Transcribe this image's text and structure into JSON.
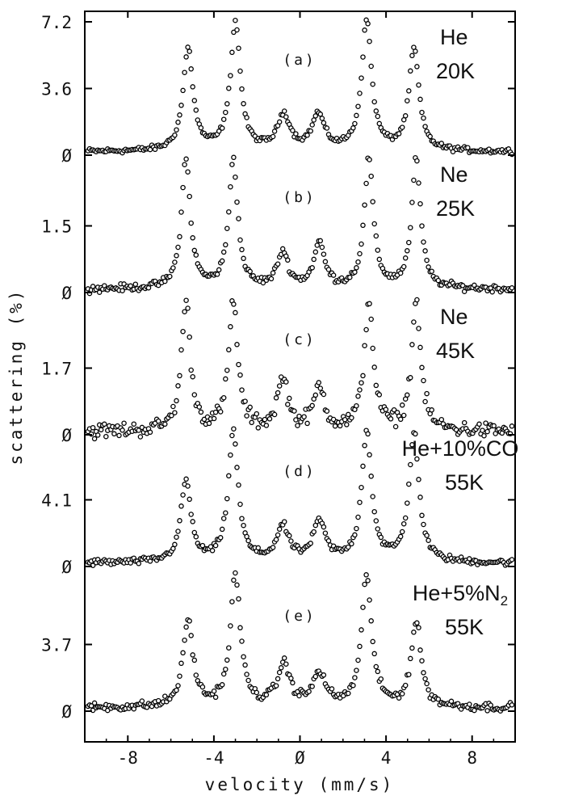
{
  "chart_data": {
    "type": "scatter",
    "xlabel": "velocity (mm/s)",
    "ylabel": "scattering (%)",
    "xlim": [
      -10,
      10
    ],
    "xticks": [
      -8,
      -4,
      0,
      4,
      8
    ],
    "x_tick_labels": [
      "-8",
      "-4",
      "Ø",
      "4",
      "8"
    ],
    "marker": "open-circle",
    "panels": [
      {
        "id": "a",
        "label": "(a)",
        "gas": "He",
        "gas_sub": "",
        "temperature": "20K",
        "ylim": [
          0,
          7.2
        ],
        "y_ticks": [
          0,
          3.6,
          7.2
        ],
        "y_tick_labels": [
          "Ø",
          "3.6",
          "7.2"
        ],
        "peaks": [
          {
            "x": -5.2,
            "height": 5.5,
            "width": 0.28
          },
          {
            "x": -3.0,
            "height": 6.9,
            "width": 0.28
          },
          {
            "x": -0.75,
            "height": 1.9,
            "width": 0.35
          },
          {
            "x": 0.85,
            "height": 1.9,
            "width": 0.35
          },
          {
            "x": 3.1,
            "height": 7.0,
            "width": 0.28
          },
          {
            "x": 5.3,
            "height": 5.5,
            "width": 0.28
          }
        ],
        "noise": 0.12
      },
      {
        "id": "b",
        "label": "(b)",
        "gas": "Ne",
        "gas_sub": "",
        "temperature": "25K",
        "ylim": [
          0,
          3.0
        ],
        "y_ticks": [
          0,
          1.5
        ],
        "y_tick_labels": [
          "Ø",
          "1.5"
        ],
        "peaks": [
          {
            "x": -5.3,
            "height": 2.9,
            "width": 0.25
          },
          {
            "x": -3.1,
            "height": 2.9,
            "width": 0.25
          },
          {
            "x": -0.8,
            "height": 0.8,
            "width": 0.3
          },
          {
            "x": 0.9,
            "height": 1.0,
            "width": 0.3
          },
          {
            "x": 3.2,
            "height": 2.9,
            "width": 0.25
          },
          {
            "x": 5.4,
            "height": 2.9,
            "width": 0.25
          }
        ],
        "noise": 0.16
      },
      {
        "id": "c",
        "label": "(c)",
        "gas": "Ne",
        "gas_sub": "",
        "temperature": "45K",
        "ylim": [
          0,
          3.4
        ],
        "y_ticks": [
          0,
          1.7
        ],
        "y_tick_labels": [
          "Ø",
          "1.7"
        ],
        "peaks": [
          {
            "x": -5.3,
            "height": 3.3,
            "width": 0.25
          },
          {
            "x": -3.1,
            "height": 3.3,
            "width": 0.25
          },
          {
            "x": -0.8,
            "height": 1.3,
            "width": 0.3
          },
          {
            "x": 0.9,
            "height": 1.1,
            "width": 0.3
          },
          {
            "x": 3.2,
            "height": 3.3,
            "width": 0.25
          },
          {
            "x": 5.4,
            "height": 3.3,
            "width": 0.25
          }
        ],
        "noise": 0.35
      },
      {
        "id": "d",
        "label": "(d)",
        "gas": "He+10%CO",
        "gas_sub": "",
        "temperature": "55K",
        "ylim": [
          0,
          8.2
        ],
        "y_ticks": [
          0,
          4.1
        ],
        "y_tick_labels": [
          "Ø",
          "4.1"
        ],
        "peaks": [
          {
            "x": -5.3,
            "height": 5.0,
            "width": 0.28
          },
          {
            "x": -3.1,
            "height": 8.0,
            "width": 0.28
          },
          {
            "x": -0.8,
            "height": 2.1,
            "width": 0.35
          },
          {
            "x": 0.9,
            "height": 2.4,
            "width": 0.35
          },
          {
            "x": 3.1,
            "height": 8.0,
            "width": 0.28
          },
          {
            "x": 5.3,
            "height": 8.0,
            "width": 0.28
          }
        ],
        "noise": 0.15
      },
      {
        "id": "e",
        "label": "(e)",
        "gas": "He+5%N",
        "gas_sub": "2",
        "temperature": "55K",
        "ylim": [
          0,
          7.4
        ],
        "y_ticks": [
          0,
          3.7
        ],
        "y_tick_labels": [
          "Ø",
          "3.7"
        ],
        "peaks": [
          {
            "x": -5.2,
            "height": 4.8,
            "width": 0.28
          },
          {
            "x": -3.0,
            "height": 7.3,
            "width": 0.28
          },
          {
            "x": -0.75,
            "height": 2.3,
            "width": 0.35
          },
          {
            "x": 0.9,
            "height": 1.8,
            "width": 0.35
          },
          {
            "x": 3.1,
            "height": 7.3,
            "width": 0.28
          },
          {
            "x": 5.4,
            "height": 4.7,
            "width": 0.28
          }
        ],
        "noise": 0.2
      }
    ]
  }
}
